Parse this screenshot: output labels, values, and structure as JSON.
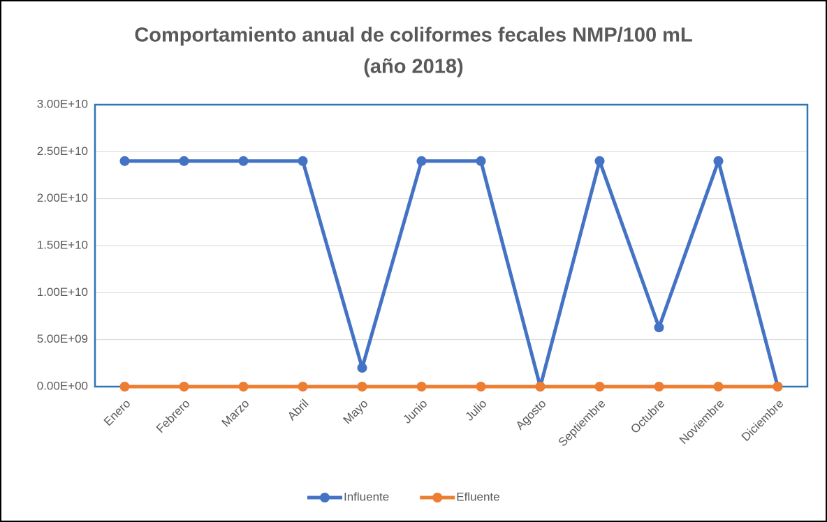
{
  "chart_data": {
    "type": "line",
    "title": [
      "Comportamiento anual de coliformes fecales NMP/100 mL",
      "(año 2018)"
    ],
    "categories": [
      "Enero",
      "Febrero",
      "Marzo",
      "Abril",
      "Mayo",
      "Junio",
      "Julio",
      "Agosto",
      "Septiembre",
      "Octubre",
      "Noviembre",
      "Diciembre"
    ],
    "series": [
      {
        "name": "Influente",
        "color": "#4472c4",
        "values": [
          24000000000,
          24000000000,
          24000000000,
          24000000000,
          2000000000,
          24000000000,
          24000000000,
          0,
          24000000000,
          6300000000,
          24000000000,
          0
        ]
      },
      {
        "name": "Efluente",
        "color": "#ed7d31",
        "values": [
          0,
          0,
          0,
          0,
          0,
          0,
          0,
          0,
          0,
          0,
          0,
          0
        ]
      }
    ],
    "ylim": [
      0,
      30000000000
    ],
    "yticks": [
      {
        "value": 0,
        "label": "0.00E+00"
      },
      {
        "value": 5000000000,
        "label": "5.00E+09"
      },
      {
        "value": 10000000000,
        "label": "1.00E+10"
      },
      {
        "value": 15000000000,
        "label": "1.50E+10"
      },
      {
        "value": 20000000000,
        "label": "2.00E+10"
      },
      {
        "value": 25000000000,
        "label": "2.50E+10"
      },
      {
        "value": 30000000000,
        "label": "3.00E+10"
      }
    ],
    "grid": true,
    "legend": "bottom"
  }
}
